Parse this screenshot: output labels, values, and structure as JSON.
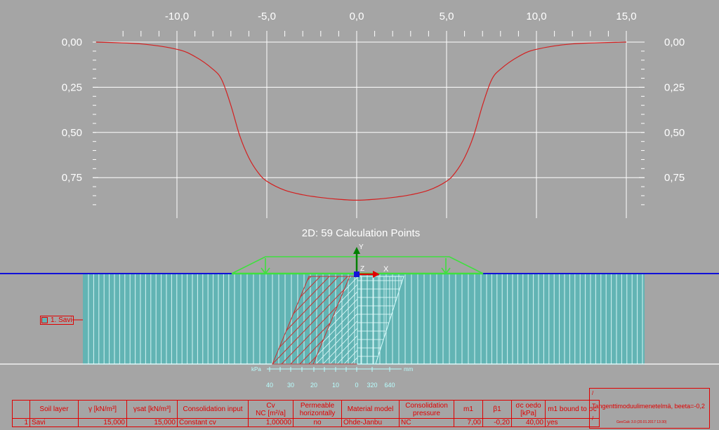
{
  "top_chart": {
    "x_ticks": [
      "-10,0",
      "-5,0",
      "0,0",
      "5,0",
      "10,0",
      "15,0"
    ],
    "y_ticks": [
      "0,00",
      "0,25",
      "0,50",
      "0,75"
    ],
    "curve_color": "#d42020"
  },
  "chart_data": {
    "type": "line",
    "title": "",
    "xlabel": "",
    "ylabel": "",
    "xlim": [
      -14.5,
      15
    ],
    "ylim": [
      0.0,
      0.9
    ],
    "y_inverted": true,
    "grid": true,
    "series": [
      {
        "x": [
          -14.5,
          -12,
          -10,
          -9,
          -8,
          -7.5,
          -7,
          -6.5,
          -6,
          -5.5,
          -5,
          -4,
          -3,
          -2,
          -1,
          0,
          1,
          2,
          3,
          4,
          5,
          5.5,
          6,
          6.5,
          7,
          7.5,
          8,
          9,
          10,
          12,
          15
        ],
        "values": [
          0.0,
          0.01,
          0.04,
          0.08,
          0.15,
          0.21,
          0.35,
          0.52,
          0.64,
          0.72,
          0.77,
          0.82,
          0.845,
          0.86,
          0.87,
          0.875,
          0.87,
          0.86,
          0.845,
          0.82,
          0.77,
          0.72,
          0.64,
          0.52,
          0.35,
          0.21,
          0.15,
          0.08,
          0.04,
          0.01,
          0.0
        ]
      }
    ]
  },
  "section": {
    "title": "2D: 59 Calculation Points",
    "axis_y": "Y",
    "axis_x": "X",
    "axis_z": "Z",
    "unit_left": "kPa",
    "unit_right": "mm",
    "scale_left": [
      "40",
      "30",
      "20",
      "10",
      "0"
    ],
    "scale_right": [
      "320",
      "640"
    ],
    "layer_label": "1. Savi",
    "soil_color": "#62b4b4",
    "load_color": "#3ee03e",
    "water_color": "#1010d8",
    "stress_color": "#c83030"
  },
  "table": {
    "headers": [
      "",
      "Soil layer",
      "γ  [kN/m³]",
      "γsat [kN/m³]",
      "Consolidation input",
      "Cv\nNC  [m²/a]",
      "Permeable\nhorizontally",
      "Material model",
      "Consolidation\npressure",
      "m1",
      "β1",
      "σc oedo\n[kPa]",
      "m1 bound to σc"
    ],
    "row": [
      "1",
      "Savi",
      "15,000",
      "15,000",
      "Constant cv",
      "1,00000",
      "no",
      "Ohde-Janbu",
      "NC",
      "7,00",
      "-0,20",
      "40,00",
      "yes"
    ]
  },
  "info": {
    "mark_top": "/",
    "method": "Tangenttimoduulimenetelmä, beeta=-0,2",
    "mark_bottom": "/",
    "stamp": "GeoCalc 3.0 (20.01.2017 13:30)"
  }
}
